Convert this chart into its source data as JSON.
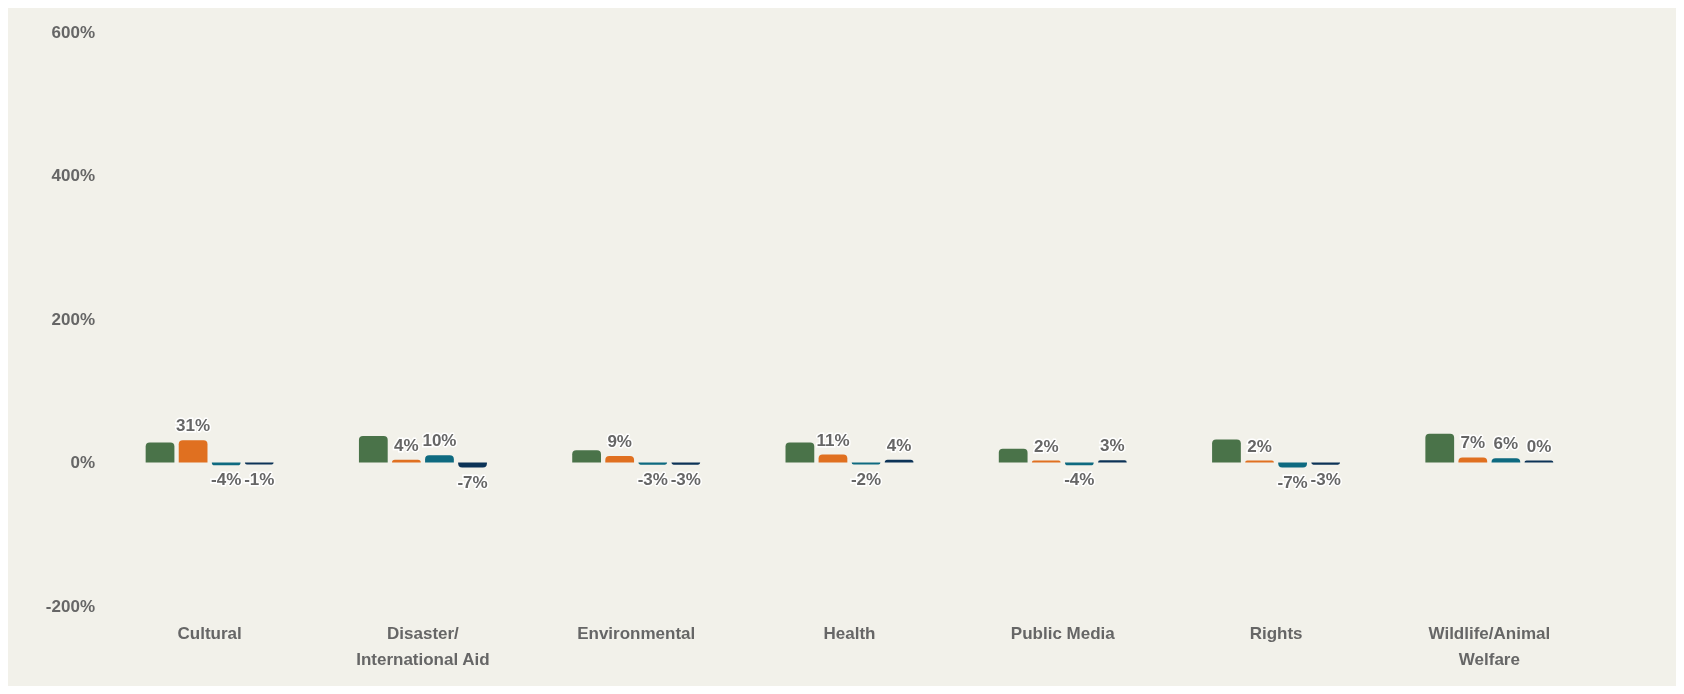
{
  "chart_data": {
    "type": "bar",
    "categories": [
      "Cultural",
      "Disaster/\nInternational Aid",
      "Environmental",
      "Health",
      "Public Media",
      "Rights",
      "Wildlife/Animal\nWelfare"
    ],
    "series": [
      {
        "color": "#4a7349",
        "values": [
          28,
          37,
          17,
          28,
          19,
          32,
          40
        ]
      },
      {
        "color": "#e07020",
        "values": [
          31,
          4,
          9,
          11,
          2,
          2,
          7
        ],
        "value_labels": [
          "31%",
          "4%",
          "9%",
          "11%",
          "2%",
          "2%",
          "7%"
        ]
      },
      {
        "color": "#0e6a80",
        "values": [
          -4,
          10,
          -3,
          -2,
          -4,
          -7,
          6
        ],
        "value_labels": [
          "-4%",
          "10%",
          "-3%",
          "-2%",
          "-4%",
          "-7%",
          "6%"
        ]
      },
      {
        "color": "#0c3357",
        "values": [
          -1,
          -7,
          -3,
          4,
          3,
          -3,
          0
        ],
        "value_labels": [
          "-1%",
          "-7%",
          "-3%",
          "4%",
          "3%",
          "-3%",
          "0%"
        ]
      }
    ],
    "ylim": [
      -200,
      600
    ],
    "yticks": [
      {
        "value": -200,
        "label": "-200%"
      },
      {
        "value": 0,
        "label": "0%"
      },
      {
        "value": 200,
        "label": "200%"
      },
      {
        "value": 400,
        "label": "400%"
      },
      {
        "value": 600,
        "label": "600%"
      }
    ],
    "grid": false
  }
}
